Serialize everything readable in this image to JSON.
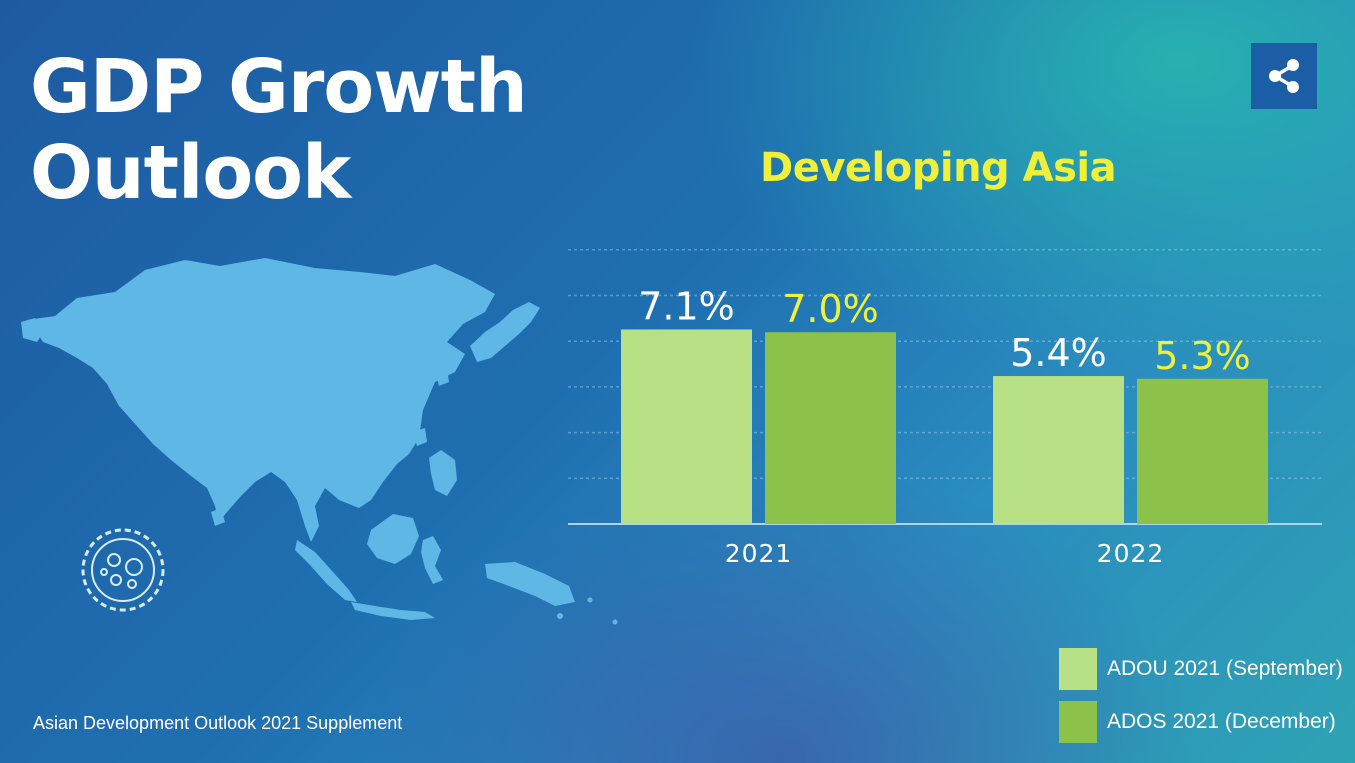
{
  "header": {
    "title_line1": "GDP Growth",
    "title_line2": "Outlook",
    "share_icon": "share-icon"
  },
  "footer": {
    "source": "Asian Development Outlook 2021 Supplement"
  },
  "decor": {
    "map": "asia-map",
    "virus": "virus-icon"
  },
  "colors": {
    "series1": "#b8e085",
    "series2": "#8cc24a",
    "label1": "#ffffff",
    "label2": "#eef03a",
    "subtitle": "#eef03a"
  },
  "chart_data": {
    "type": "bar",
    "title": "Developing Asia",
    "categories": [
      "2021",
      "2022"
    ],
    "series": [
      {
        "name": "ADOU 2021 (September)",
        "values": [
          7.1,
          5.4
        ],
        "labels": [
          "7.1%",
          "5.4%"
        ]
      },
      {
        "name": "ADOS 2021 (December)",
        "values": [
          7.0,
          5.3
        ],
        "labels": [
          "7.0%",
          "5.3%"
        ]
      }
    ],
    "ylim": [
      0,
      10
    ],
    "grid": true,
    "legend": "bottom-right"
  }
}
